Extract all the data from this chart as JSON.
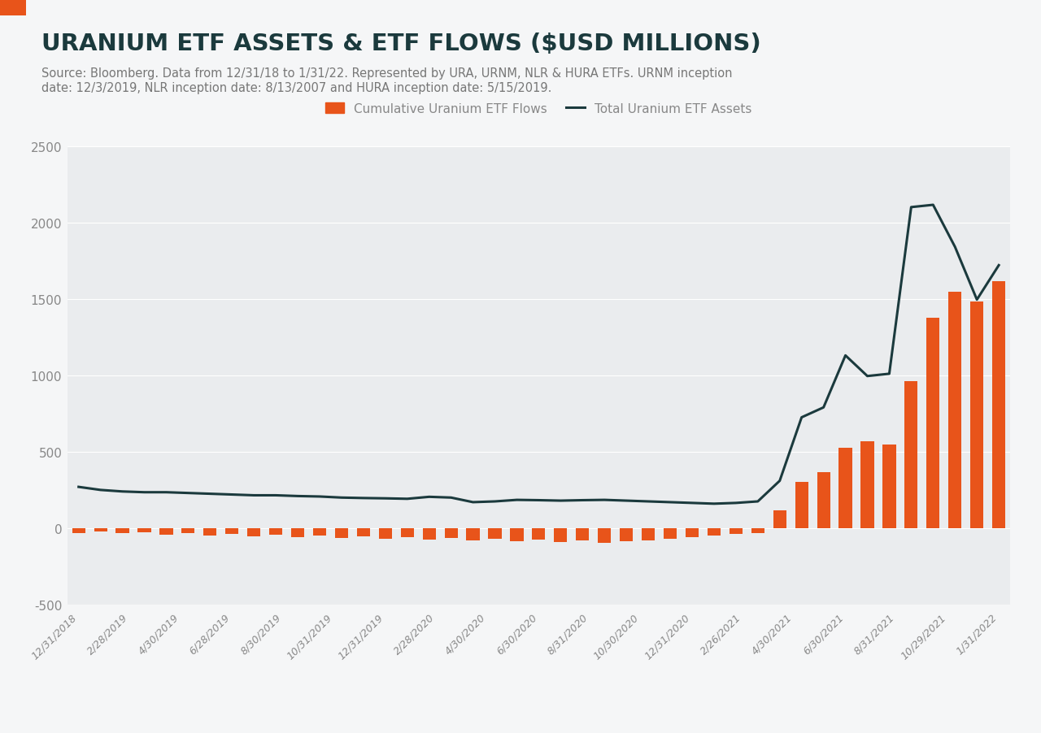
{
  "title": "URANIUM ETF ASSETS & ETF FLOWS ($USD MILLIONS)",
  "subtitle_line1": "Source: Bloomberg. Data from 12/31/18 to 1/31/22. Represented by URA, URNM, NLR & HURA ETFs. URNM inception",
  "subtitle_line2": "date: 12/3/2019, NLR inception date: 8/13/2007 and HURA inception date: 5/15/2019.",
  "legend_labels": [
    "Cumulative Uranium ETF Flows",
    "Total Uranium ETF Assets"
  ],
  "bar_color": "#E8541A",
  "line_color": "#1B3A3D",
  "fig_bg_color": "#F5F6F7",
  "plot_bg_color": "#EAECEE",
  "title_color": "#1B3A3D",
  "subtitle_color": "#777777",
  "tick_color": "#888888",
  "accent_color": "#E8541A",
  "grid_color": "#FFFFFF",
  "ylim": [
    -500,
    2500
  ],
  "yticks": [
    -500,
    0,
    500,
    1000,
    1500,
    2000,
    2500
  ],
  "x_labels": [
    "12/31/2018",
    "2/28/2019",
    "4/30/2019",
    "6/28/2019",
    "8/30/2019",
    "10/31/2019",
    "12/31/2019",
    "2/28/2020",
    "4/30/2020",
    "6/30/2020",
    "8/31/2020",
    "10/30/2020",
    "12/31/2020",
    "2/26/2021",
    "4/30/2021",
    "6/30/2021",
    "8/31/2021",
    "10/29/2021",
    "1/31/2022"
  ],
  "bar_values": [
    -30,
    -20,
    -35,
    -25,
    -45,
    -35,
    -50,
    -40,
    -55,
    -45,
    -60,
    -50,
    -65,
    -55,
    -70,
    -60,
    -75,
    -65,
    -80,
    -70,
    -85,
    -75,
    -90,
    -80,
    -95,
    -85,
    -80,
    -70,
    -60,
    -50,
    -40,
    -30,
    115,
    305,
    365,
    525,
    570,
    545,
    960,
    1375,
    1545,
    1480,
    1615
  ],
  "line_values": [
    270,
    250,
    240,
    235,
    235,
    230,
    225,
    220,
    215,
    215,
    210,
    207,
    200,
    197,
    195,
    192,
    205,
    200,
    170,
    175,
    185,
    183,
    180,
    183,
    185,
    180,
    175,
    170,
    165,
    160,
    165,
    175,
    310,
    725,
    790,
    1130,
    995,
    1010,
    2100,
    2115,
    1840,
    1495,
    1720
  ]
}
